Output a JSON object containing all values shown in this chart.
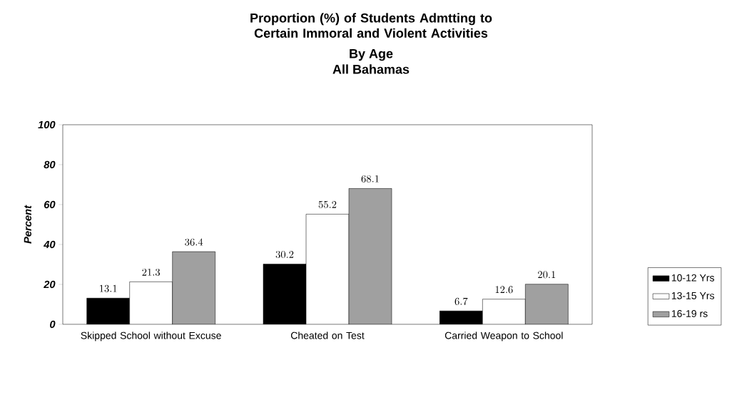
{
  "chart_data": {
    "type": "bar",
    "title": "Proportion (%) of Students Admtting to Certain Immoral and Violent Activities",
    "subtitle": "By Age",
    "annotations": [
      "All Bahamas"
    ],
    "ylabel": "Percent",
    "categories": [
      "Skipped School without Excuse",
      "Cheated on Test",
      "Carried Weapon to School"
    ],
    "series": [
      {
        "name": "10-12 Yrs",
        "color": "#000000",
        "values": [
          13.1,
          30.2,
          6.7
        ]
      },
      {
        "name": "13-15 Yrs",
        "color": "#ffffff",
        "values": [
          21.3,
          55.2,
          12.6
        ]
      },
      {
        "name": "16-19 rs",
        "color": "#a0a0a0",
        "values": [
          36.4,
          68.1,
          20.1
        ]
      }
    ],
    "ylim": [
      0,
      100
    ],
    "yticks": [
      0,
      20,
      40,
      60,
      80,
      100
    ],
    "data_labels": true,
    "legend": "right"
  }
}
